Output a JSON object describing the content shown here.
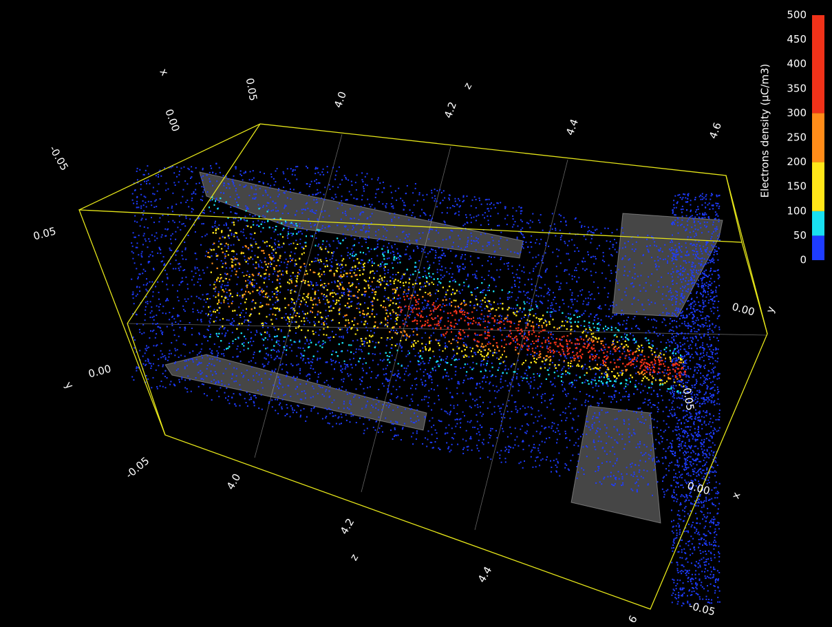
{
  "colorbar": {
    "label": "Electrons density (μC/m3)",
    "range": [
      0,
      500
    ],
    "ticks": [
      0,
      50,
      100,
      150,
      200,
      250,
      300,
      350,
      400,
      450,
      500
    ],
    "bands": [
      {
        "from": 0,
        "to": 50,
        "color": "#1e3cff"
      },
      {
        "from": 50,
        "to": 100,
        "color": "#19e0f0"
      },
      {
        "from": 100,
        "to": 200,
        "color": "#ffe619"
      },
      {
        "from": 200,
        "to": 300,
        "color": "#ff8c19"
      },
      {
        "from": 300,
        "to": 500,
        "color": "#f03219"
      }
    ]
  },
  "axis_labels": [
    "x",
    "0.00",
    "0.05",
    "4.0",
    "z",
    "4.2",
    "4.4",
    "4.6",
    "-0.05",
    "0.05",
    "y",
    "0.00",
    "-0.05",
    "4.0",
    "4.2",
    "z",
    "4.4",
    "6",
    "0.00",
    "y",
    "0.05",
    "0.00",
    "x",
    "-0.05"
  ]
}
